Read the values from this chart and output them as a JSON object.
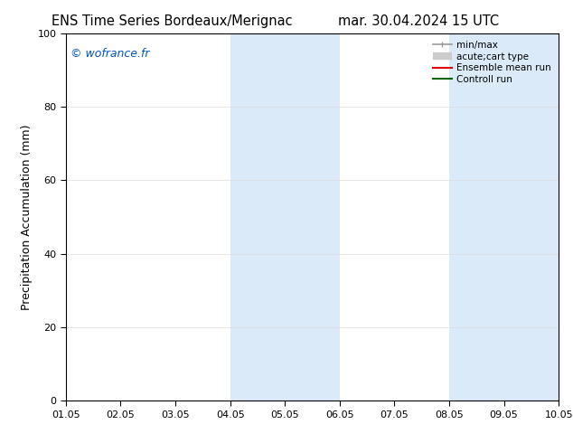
{
  "title_left": "ENS Time Series Bordeaux/Merignac",
  "title_right": "mar. 30.04.2024 15 UTC",
  "ylabel": "Precipitation Accumulation (mm)",
  "watermark": "© wofrance.fr",
  "watermark_color": "#0055cc",
  "ylim": [
    0,
    100
  ],
  "xlim_start": 0,
  "xlim_end": 9,
  "xtick_positions": [
    0,
    1,
    2,
    3,
    4,
    5,
    6,
    7,
    8,
    9
  ],
  "xtick_labels": [
    "01.05",
    "02.05",
    "03.05",
    "04.05",
    "05.05",
    "06.05",
    "07.05",
    "08.05",
    "09.05",
    "10.05"
  ],
  "ytick_labels": [
    0,
    20,
    40,
    60,
    80,
    100
  ],
  "bg_color": "#ffffff",
  "plot_bg_color": "#ffffff",
  "shade_color": "#daeaf8",
  "shade_regions": [
    {
      "x_start": 3,
      "x_end": 4
    },
    {
      "x_start": 4,
      "x_end": 5
    },
    {
      "x_start": 7,
      "x_end": 8
    },
    {
      "x_start": 8,
      "x_end": 9
    }
  ],
  "legend_items": [
    {
      "label": "min/max",
      "color": "#999999",
      "lw": 1.2
    },
    {
      "label": "acute;cart type",
      "color": "#cccccc",
      "lw": 6
    },
    {
      "label": "Ensemble mean run",
      "color": "#dd0000",
      "lw": 1.5
    },
    {
      "label": "Controll run",
      "color": "#006600",
      "lw": 1.5
    }
  ],
  "font_size_title": 10.5,
  "font_size_labels": 9,
  "font_size_ticks": 8,
  "font_size_watermark": 9,
  "font_size_legend": 7.5
}
